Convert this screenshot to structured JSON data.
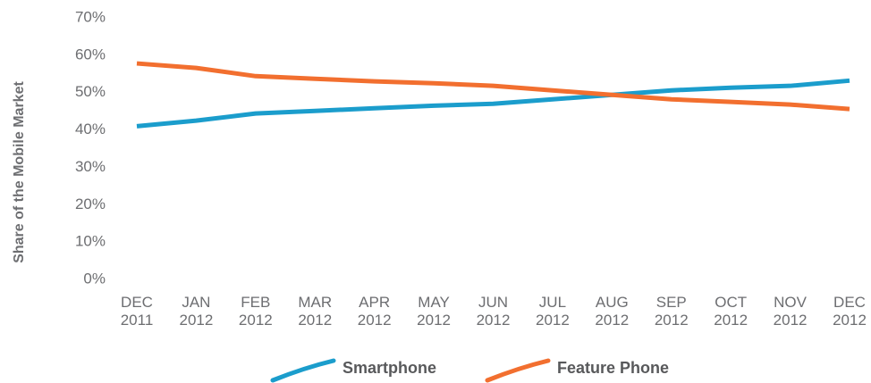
{
  "chart_data": {
    "type": "line",
    "y_label": "Share of the Mobile Market",
    "categories": [
      "DEC 2011",
      "JAN 2012",
      "FEB 2012",
      "MAR 2012",
      "APR 2012",
      "MAY 2012",
      "JUN 2012",
      "JUL 2012",
      "AUG 2012",
      "SEP 2012",
      "OCT 2012",
      "NOV 2012",
      "DEC 2012"
    ],
    "series": [
      {
        "name": "Smartphone",
        "color": "#1b9dcc",
        "values": [
          41.0,
          42.5,
          44.4,
          45.1,
          45.8,
          46.5,
          47.0,
          48.2,
          49.4,
          50.6,
          51.3,
          51.8,
          53.2
        ]
      },
      {
        "name": "Feature Phone",
        "color": "#f26f2f",
        "values": [
          57.8,
          56.6,
          54.4,
          53.7,
          53.0,
          52.5,
          51.8,
          50.6,
          49.4,
          48.2,
          47.5,
          46.8,
          45.6
        ]
      }
    ],
    "ylim": [
      0,
      70
    ],
    "yticks": [
      {
        "value": 0,
        "label": "0%"
      },
      {
        "value": 10,
        "label": "10%"
      },
      {
        "value": 20,
        "label": "20%"
      },
      {
        "value": 30,
        "label": "30%"
      },
      {
        "value": 40,
        "label": "40%"
      },
      {
        "value": 50,
        "label": "50%"
      },
      {
        "value": 60,
        "label": "60%"
      },
      {
        "value": 70,
        "label": "70%"
      }
    ],
    "grid": false
  }
}
